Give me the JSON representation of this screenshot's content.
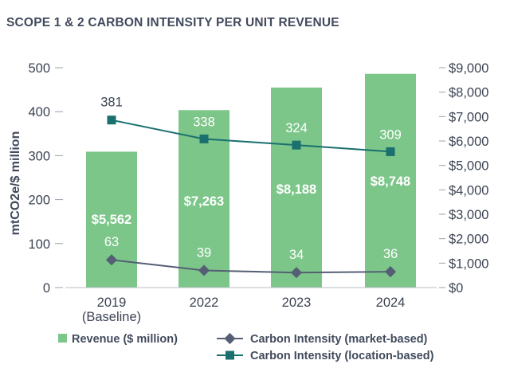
{
  "chart_data": {
    "type": "bar",
    "title": "SCOPE 1 & 2 CARBON INTENSITY PER UNIT REVENUE",
    "categories": [
      "2019\n(Baseline)",
      "2022",
      "2023",
      "2024"
    ],
    "y_left": {
      "label": "mtCO2e/$ million",
      "range": [
        0,
        500
      ],
      "ticks": [
        0,
        100,
        200,
        300,
        400,
        500
      ],
      "tick_labels": [
        "0",
        "100",
        "200",
        "300",
        "400",
        "500"
      ]
    },
    "y_right": {
      "range": [
        0,
        9000
      ],
      "ticks": [
        0,
        1000,
        2000,
        3000,
        4000,
        5000,
        6000,
        7000,
        8000,
        9000
      ],
      "tick_labels": [
        "$0",
        "$1,000",
        "$2,000",
        "$3,000",
        "$4,000",
        "$5,000",
        "$6,000",
        "$7,000",
        "$8,000",
        "$9,000"
      ]
    },
    "series": [
      {
        "name": "Revenue ($ million)",
        "kind": "bar",
        "axis": "right",
        "color": "#7cc68a",
        "values": [
          5562,
          7263,
          8188,
          8748
        ],
        "labels": [
          "$5,562",
          "$7,263",
          "$8,188",
          "$8,748"
        ]
      },
      {
        "name": "Carbon Intensity (market-based)",
        "kind": "line",
        "axis": "left",
        "marker": "diamond",
        "color": "#555f74",
        "values": [
          63,
          39,
          34,
          36
        ],
        "labels": [
          "63",
          "39",
          "34",
          "36"
        ]
      },
      {
        "name": "Carbon Intensity (location-based)",
        "kind": "line",
        "axis": "left",
        "marker": "square",
        "color": "#1a6f6f",
        "values": [
          381,
          338,
          324,
          309
        ],
        "labels": [
          "381",
          "338",
          "324",
          "309"
        ]
      }
    ],
    "grid": false,
    "legend_position": "bottom"
  }
}
